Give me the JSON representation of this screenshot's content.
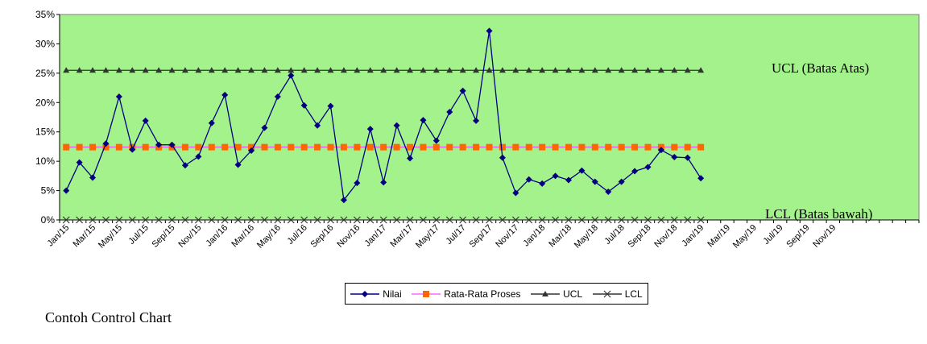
{
  "chart_data": {
    "type": "line",
    "title": "",
    "xlabel": "",
    "ylabel": "",
    "ylim": [
      0,
      35
    ],
    "yticks": [
      "0%",
      "5%",
      "10%",
      "15%",
      "20%",
      "25%",
      "30%",
      "35%"
    ],
    "x_labels": [
      "Jan/15",
      "Mar/15",
      "May/15",
      "Jul/15",
      "Sep/15",
      "Nov/15",
      "Jan/16",
      "Mar/16",
      "May/16",
      "Jul/16",
      "Sep/16",
      "Nov/16",
      "Jan/17",
      "Mar/17",
      "May/17",
      "Jul/17",
      "Sep/17",
      "Nov/17",
      "Jan/18",
      "Mar/18",
      "May/18",
      "Jul/18",
      "Sep/18",
      "Nov/18",
      "Jan/19",
      "Mar/19",
      "May/19",
      "Jul/19",
      "Sep/19",
      "Nov/19"
    ],
    "series": [
      {
        "name": "Nilai",
        "color": "#000080",
        "marker": "diamond",
        "values": [
          5.0,
          9.8,
          7.2,
          13.0,
          21.0,
          12.0,
          16.9,
          12.8,
          12.8,
          9.3,
          10.8,
          16.5,
          21.3,
          9.4,
          11.8,
          15.7,
          21.0,
          24.6,
          19.5,
          16.1,
          19.4,
          3.4,
          6.3,
          15.5,
          6.4,
          16.1,
          10.5,
          17.0,
          13.5,
          18.4,
          22.0,
          16.9,
          32.2,
          10.6,
          4.6,
          6.9,
          6.2,
          7.5,
          6.8,
          8.4,
          6.5,
          4.8,
          6.5,
          8.3,
          9.0,
          11.9,
          10.7,
          10.6,
          7.1
        ]
      },
      {
        "name": "Rata-Rata Proses",
        "color": "#FF66FF",
        "marker_color": "#FF6600",
        "marker": "square",
        "values": [
          12.4,
          12.4,
          12.4,
          12.4,
          12.4,
          12.4,
          12.4,
          12.4,
          12.4,
          12.4,
          12.4,
          12.4,
          12.4,
          12.4,
          12.4,
          12.4,
          12.4,
          12.4,
          12.4,
          12.4,
          12.4,
          12.4,
          12.4,
          12.4,
          12.4,
          12.4,
          12.4,
          12.4,
          12.4,
          12.4,
          12.4,
          12.4,
          12.4,
          12.4,
          12.4,
          12.4,
          12.4,
          12.4,
          12.4,
          12.4,
          12.4,
          12.4,
          12.4,
          12.4,
          12.4,
          12.4,
          12.4,
          12.4,
          12.4
        ]
      },
      {
        "name": "UCL",
        "color": "#333333",
        "marker": "triangle",
        "values": [
          25.5,
          25.5,
          25.5,
          25.5,
          25.5,
          25.5,
          25.5,
          25.5,
          25.5,
          25.5,
          25.5,
          25.5,
          25.5,
          25.5,
          25.5,
          25.5,
          25.5,
          25.5,
          25.5,
          25.5,
          25.5,
          25.5,
          25.5,
          25.5,
          25.5,
          25.5,
          25.5,
          25.5,
          25.5,
          25.5,
          25.5,
          25.5,
          25.5,
          25.5,
          25.5,
          25.5,
          25.5,
          25.5,
          25.5,
          25.5,
          25.5,
          25.5,
          25.5,
          25.5,
          25.5,
          25.5,
          25.5,
          25.5,
          25.5
        ]
      },
      {
        "name": "LCL",
        "color": "#333333",
        "marker": "x",
        "values": [
          0,
          0,
          0,
          0,
          0,
          0,
          0,
          0,
          0,
          0,
          0,
          0,
          0,
          0,
          0,
          0,
          0,
          0,
          0,
          0,
          0,
          0,
          0,
          0,
          0,
          0,
          0,
          0,
          0,
          0,
          0,
          0,
          0,
          0,
          0,
          0,
          0,
          0,
          0,
          0,
          0,
          0,
          0,
          0,
          0,
          0,
          0,
          0,
          0
        ]
      }
    ],
    "annotations": {
      "ucl_label": "UCL (Batas Atas)",
      "lcl_label": "LCL (Batas bawah)"
    },
    "plot_background": "#A3F28C",
    "grid": false,
    "legend_position": "bottom-center"
  },
  "caption": "Contoh Control Chart"
}
